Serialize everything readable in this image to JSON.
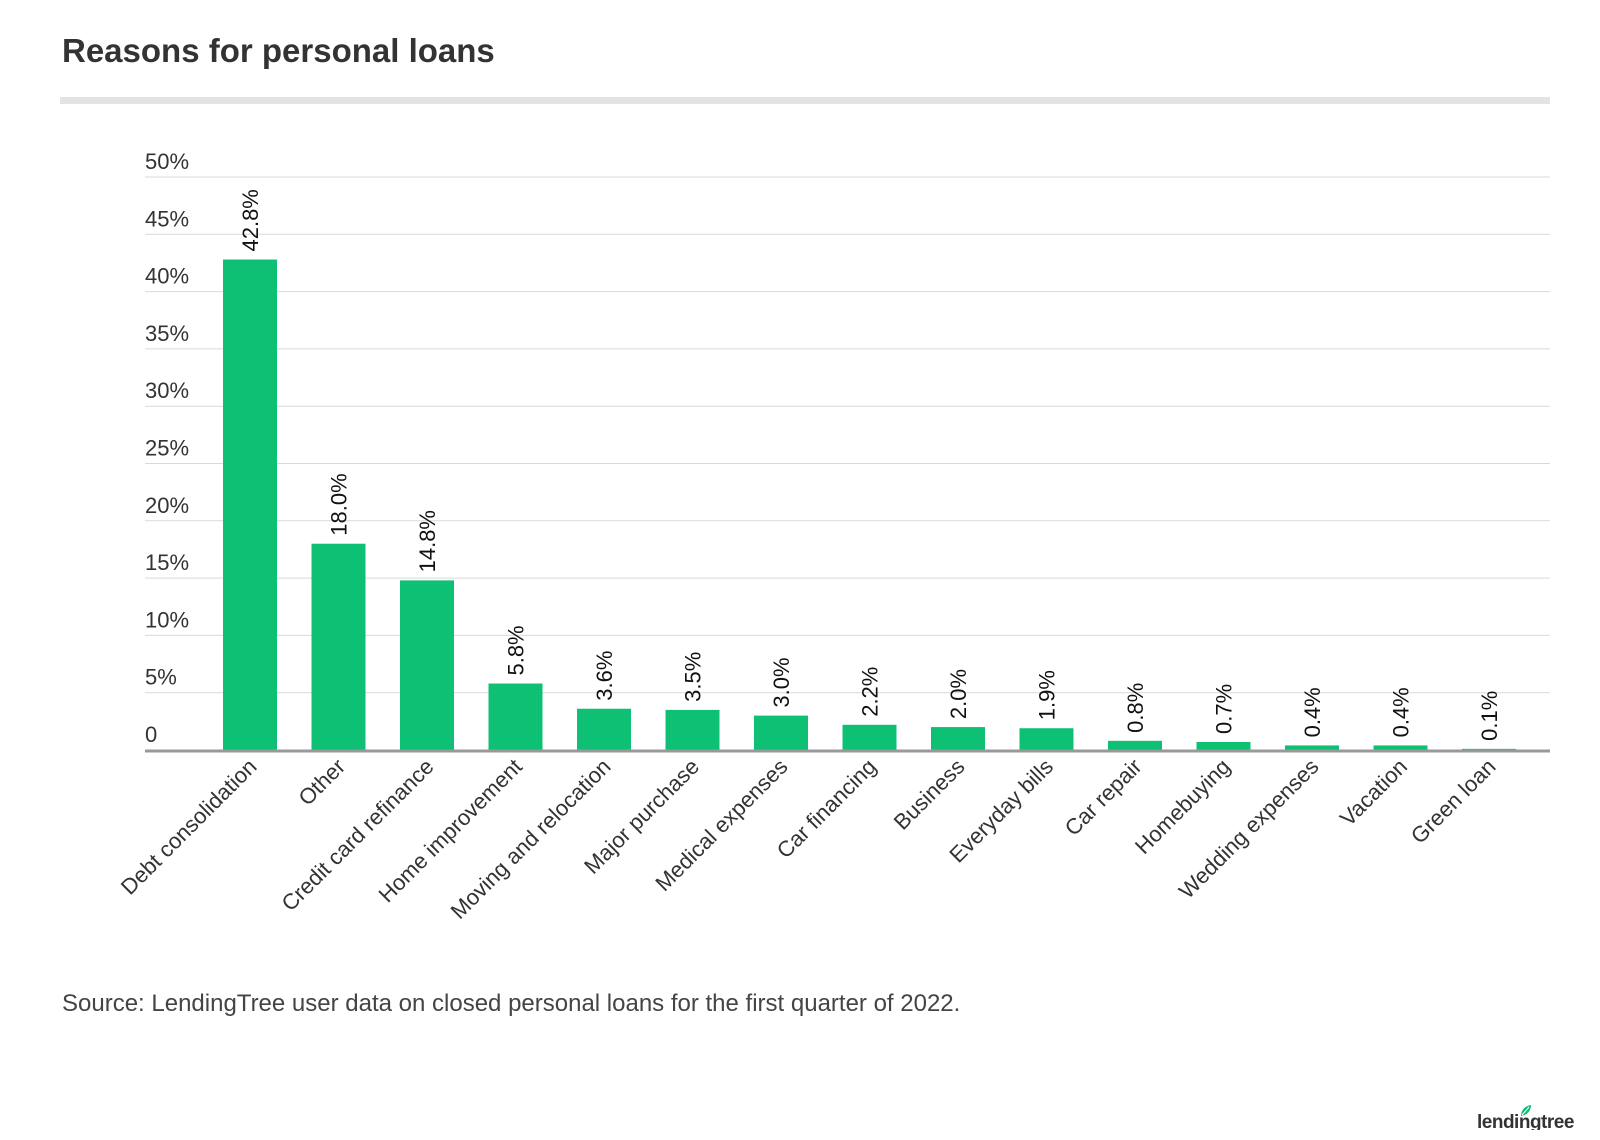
{
  "title": "Reasons for personal loans",
  "source": "Source: LendingTree user data on closed personal loans for the first quarter of 2022.",
  "brand": {
    "name": "lendingtree",
    "logo_icon": "leaf-icon"
  },
  "colors": {
    "bar": "#0ec073",
    "grid": "#d9d9d9",
    "axis": "#999999",
    "text": "#333333"
  },
  "chart_data": {
    "type": "bar",
    "title": "Reasons for personal loans",
    "xlabel": "",
    "ylabel": "",
    "ylim": [
      0,
      50
    ],
    "yticks": [
      "0",
      "5%",
      "10%",
      "15%",
      "20%",
      "25%",
      "30%",
      "35%",
      "40%",
      "45%",
      "50%"
    ],
    "grid": true,
    "categories": [
      "Debt consolidation",
      "Other",
      "Credit card refinance",
      "Home improvement",
      "Moving and relocation",
      "Major purchase",
      "Medical expenses",
      "Car financing",
      "Business",
      "Everyday bills",
      "Car repair",
      "Homebuying",
      "Wedding expenses",
      "Vacation",
      "Green loan"
    ],
    "values": [
      42.8,
      18.0,
      14.8,
      5.8,
      3.6,
      3.5,
      3.0,
      2.2,
      2.0,
      1.9,
      0.8,
      0.7,
      0.4,
      0.4,
      0.1
    ],
    "data_labels": [
      "42.8%",
      "18.0%",
      "14.8%",
      "5.8%",
      "3.6%",
      "3.5%",
      "3.0%",
      "2.2%",
      "2.0%",
      "1.9%",
      "0.8%",
      "0.7%",
      "0.4%",
      "0.4%",
      "0.1%"
    ]
  }
}
